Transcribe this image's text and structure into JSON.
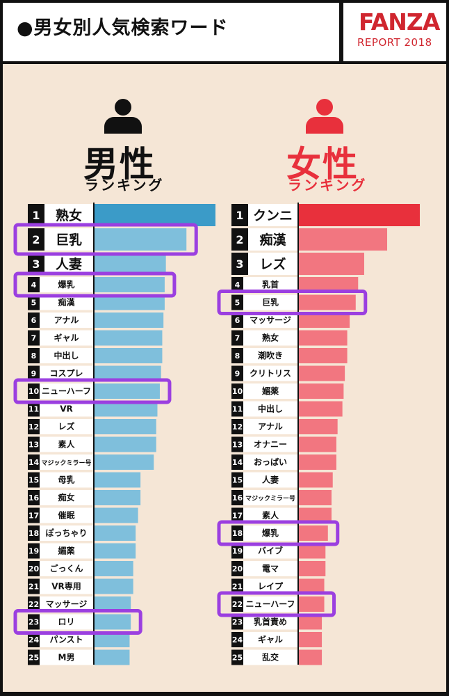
{
  "header": {
    "title": "●男女別人気検索ワード",
    "brand": "FANZA",
    "brand_sub": "REPORT 2018"
  },
  "colors": {
    "male_bar": "#7fbfdc",
    "male_bar_top": "#3b9bc8",
    "female_bar": "#f27680",
    "female_bar_top": "#e8303c",
    "highlight": "#9b3fe0",
    "background": "#f5e6d6",
    "rank_box": "#111111"
  },
  "icons": {
    "male": "person-icon",
    "female": "person-icon"
  },
  "male": {
    "title": "男性",
    "subtitle": "ランキング"
  },
  "female": {
    "title": "女性",
    "subtitle": "ランキング"
  },
  "chart_data": [
    {
      "type": "bar",
      "orientation": "horizontal",
      "title": "男性",
      "subtitle": "ランキング",
      "ranks": [
        1,
        2,
        3,
        4,
        5,
        6,
        7,
        8,
        9,
        10,
        11,
        12,
        13,
        14,
        15,
        16,
        17,
        18,
        19,
        20,
        21,
        22,
        23,
        24,
        25
      ],
      "categories": [
        "熟女",
        "巨乳",
        "人妻",
        "爆乳",
        "痴漢",
        "アナル",
        "ギャル",
        "中出し",
        "コスプレ",
        "ニューハーフ",
        "VR",
        "レズ",
        "素人",
        "マジックミラー号",
        "母乳",
        "痴女",
        "催眠",
        "ぽっちゃり",
        "媚薬",
        "ごっくん",
        "VR専用",
        "マッサージ",
        "ロリ",
        "パンスト",
        "M男"
      ],
      "values": [
        100,
        76,
        59,
        58,
        58,
        57,
        56,
        56,
        55,
        54,
        52,
        51,
        51,
        49,
        38,
        38,
        36,
        34,
        34,
        32,
        32,
        30,
        30,
        29,
        29
      ],
      "value_scale": "relative (rank 1 = 100)",
      "highlighted": [
        "巨乳",
        "爆乳",
        "ニューハーフ",
        "ロリ"
      ]
    },
    {
      "type": "bar",
      "orientation": "horizontal",
      "title": "女性",
      "subtitle": "ランキング",
      "ranks": [
        1,
        2,
        3,
        4,
        5,
        6,
        7,
        8,
        9,
        10,
        11,
        12,
        13,
        14,
        15,
        16,
        17,
        18,
        19,
        20,
        21,
        22,
        23,
        24,
        25
      ],
      "categories": [
        "クンニ",
        "痴漢",
        "レズ",
        "乳首",
        "巨乳",
        "マッサージ",
        "熟女",
        "潮吹き",
        "クリトリス",
        "媚薬",
        "中出し",
        "アナル",
        "オナニー",
        "おっぱい",
        "人妻",
        "マジックミラー号",
        "素人",
        "爆乳",
        "バイブ",
        "電マ",
        "レイプ",
        "ニューハーフ",
        "乳首責め",
        "ギャル",
        "乱交"
      ],
      "values": [
        100,
        73,
        54,
        49,
        47,
        42,
        40,
        40,
        38,
        37,
        36,
        32,
        31,
        31,
        28,
        27,
        27,
        24,
        22,
        22,
        21,
        21,
        19,
        19,
        19
      ],
      "value_scale": "relative (rank 1 = 100)",
      "highlighted": [
        "巨乳",
        "爆乳",
        "ニューハーフ"
      ]
    }
  ]
}
